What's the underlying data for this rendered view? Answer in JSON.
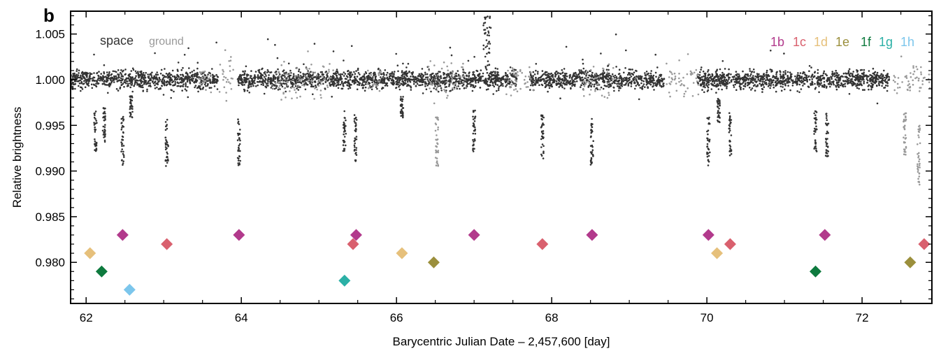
{
  "chart_data": {
    "type": "scatter",
    "panel_label": "b",
    "xlabel": "Barycentric Julian Date – 2,457,600 [day]",
    "ylabel": "Relative brightness",
    "xlim": [
      61.8,
      72.9
    ],
    "ylim": [
      0.9755,
      1.0075
    ],
    "x_ticks": [
      62,
      64,
      66,
      68,
      70,
      72
    ],
    "x_tick_labels": [
      "62",
      "64",
      "66",
      "68",
      "70",
      "72"
    ],
    "y_ticks": [
      0.98,
      0.985,
      0.99,
      0.995,
      1.0,
      1.005
    ],
    "y_tick_labels": [
      "0.980",
      "0.985",
      "0.990",
      "0.995",
      "1.000",
      "1.005"
    ],
    "grid": false,
    "legend_left": {
      "position": "top-left",
      "entries": [
        {
          "label": "space",
          "color": "#333333"
        },
        {
          "label": "ground",
          "color": "#999999"
        }
      ]
    },
    "legend_right": {
      "position": "top-right",
      "entries": [
        {
          "label": "1b",
          "color": "#b23a8c"
        },
        {
          "label": "1c",
          "color": "#d9606e"
        },
        {
          "label": "1d",
          "color": "#e6c07b"
        },
        {
          "label": "1e",
          "color": "#9b8f3c"
        },
        {
          "label": "1f",
          "color": "#0e7a3e"
        },
        {
          "label": "1g",
          "color": "#2bb0a6"
        },
        {
          "label": "1h",
          "color": "#7cc6ec"
        }
      ]
    },
    "series": [
      {
        "name": "space",
        "color": "#333333",
        "baseline": 1.0,
        "scatter": 0.0009,
        "segments": [
          [
            61.8,
            63.7
          ],
          [
            63.95,
            67.55
          ],
          [
            67.72,
            69.45
          ],
          [
            69.88,
            72.35
          ]
        ]
      },
      {
        "name": "ground",
        "color": "#999999",
        "baseline": 1.0,
        "scatter": 0.0018,
        "segments": [
          [
            63.45,
            63.9
          ],
          [
            64.4,
            65.2
          ],
          [
            65.6,
            65.8
          ],
          [
            66.4,
            66.9
          ],
          [
            67.4,
            67.8
          ],
          [
            68.4,
            68.8
          ],
          [
            69.45,
            69.9
          ],
          [
            72.4,
            72.9
          ]
        ]
      }
    ],
    "transit_dips": [
      {
        "x": 62.12,
        "depth": 0.0075,
        "source": "space"
      },
      {
        "x": 62.23,
        "depth": 0.0065,
        "source": "space"
      },
      {
        "x": 62.47,
        "depth": 0.009,
        "source": "space"
      },
      {
        "x": 62.58,
        "depth": 0.004,
        "source": "space"
      },
      {
        "x": 63.04,
        "depth": 0.009,
        "source": "space"
      },
      {
        "x": 63.97,
        "depth": 0.009,
        "source": "space"
      },
      {
        "x": 65.33,
        "depth": 0.0075,
        "source": "space"
      },
      {
        "x": 65.47,
        "depth": 0.0085,
        "source": "space"
      },
      {
        "x": 66.07,
        "depth": 0.004,
        "source": "space"
      },
      {
        "x": 66.52,
        "depth": 0.009,
        "source": "ground"
      },
      {
        "x": 67.0,
        "depth": 0.0075,
        "source": "space"
      },
      {
        "x": 67.88,
        "depth": 0.0085,
        "source": "space"
      },
      {
        "x": 68.52,
        "depth": 0.009,
        "source": "space"
      },
      {
        "x": 70.02,
        "depth": 0.009,
        "source": "space"
      },
      {
        "x": 70.15,
        "depth": 0.0045,
        "source": "space"
      },
      {
        "x": 70.3,
        "depth": 0.008,
        "source": "space"
      },
      {
        "x": 71.4,
        "depth": 0.0075,
        "source": "space"
      },
      {
        "x": 71.55,
        "depth": 0.008,
        "source": "space"
      },
      {
        "x": 72.55,
        "depth": 0.008,
        "source": "ground"
      },
      {
        "x": 72.73,
        "depth": 0.011,
        "source": "ground"
      }
    ],
    "transit_markers": [
      {
        "x": 62.05,
        "y": 0.981,
        "planet": "1d"
      },
      {
        "x": 62.2,
        "y": 0.979,
        "planet": "1f"
      },
      {
        "x": 62.47,
        "y": 0.983,
        "planet": "1b"
      },
      {
        "x": 62.56,
        "y": 0.977,
        "planet": "1h"
      },
      {
        "x": 63.04,
        "y": 0.982,
        "planet": "1c"
      },
      {
        "x": 63.97,
        "y": 0.983,
        "planet": "1b"
      },
      {
        "x": 65.33,
        "y": 0.978,
        "planet": "1g"
      },
      {
        "x": 65.44,
        "y": 0.982,
        "planet": "1c"
      },
      {
        "x": 65.48,
        "y": 0.983,
        "planet": "1b"
      },
      {
        "x": 66.07,
        "y": 0.981,
        "planet": "1d"
      },
      {
        "x": 66.48,
        "y": 0.98,
        "planet": "1e"
      },
      {
        "x": 67.0,
        "y": 0.983,
        "planet": "1b"
      },
      {
        "x": 67.88,
        "y": 0.982,
        "planet": "1c"
      },
      {
        "x": 68.52,
        "y": 0.983,
        "planet": "1b"
      },
      {
        "x": 70.02,
        "y": 0.983,
        "planet": "1b"
      },
      {
        "x": 70.13,
        "y": 0.981,
        "planet": "1d"
      },
      {
        "x": 70.3,
        "y": 0.982,
        "planet": "1c"
      },
      {
        "x": 71.4,
        "y": 0.979,
        "planet": "1f"
      },
      {
        "x": 71.52,
        "y": 0.983,
        "planet": "1b"
      },
      {
        "x": 72.62,
        "y": 0.98,
        "planet": "1e"
      },
      {
        "x": 72.8,
        "y": 0.982,
        "planet": "1c"
      }
    ]
  }
}
